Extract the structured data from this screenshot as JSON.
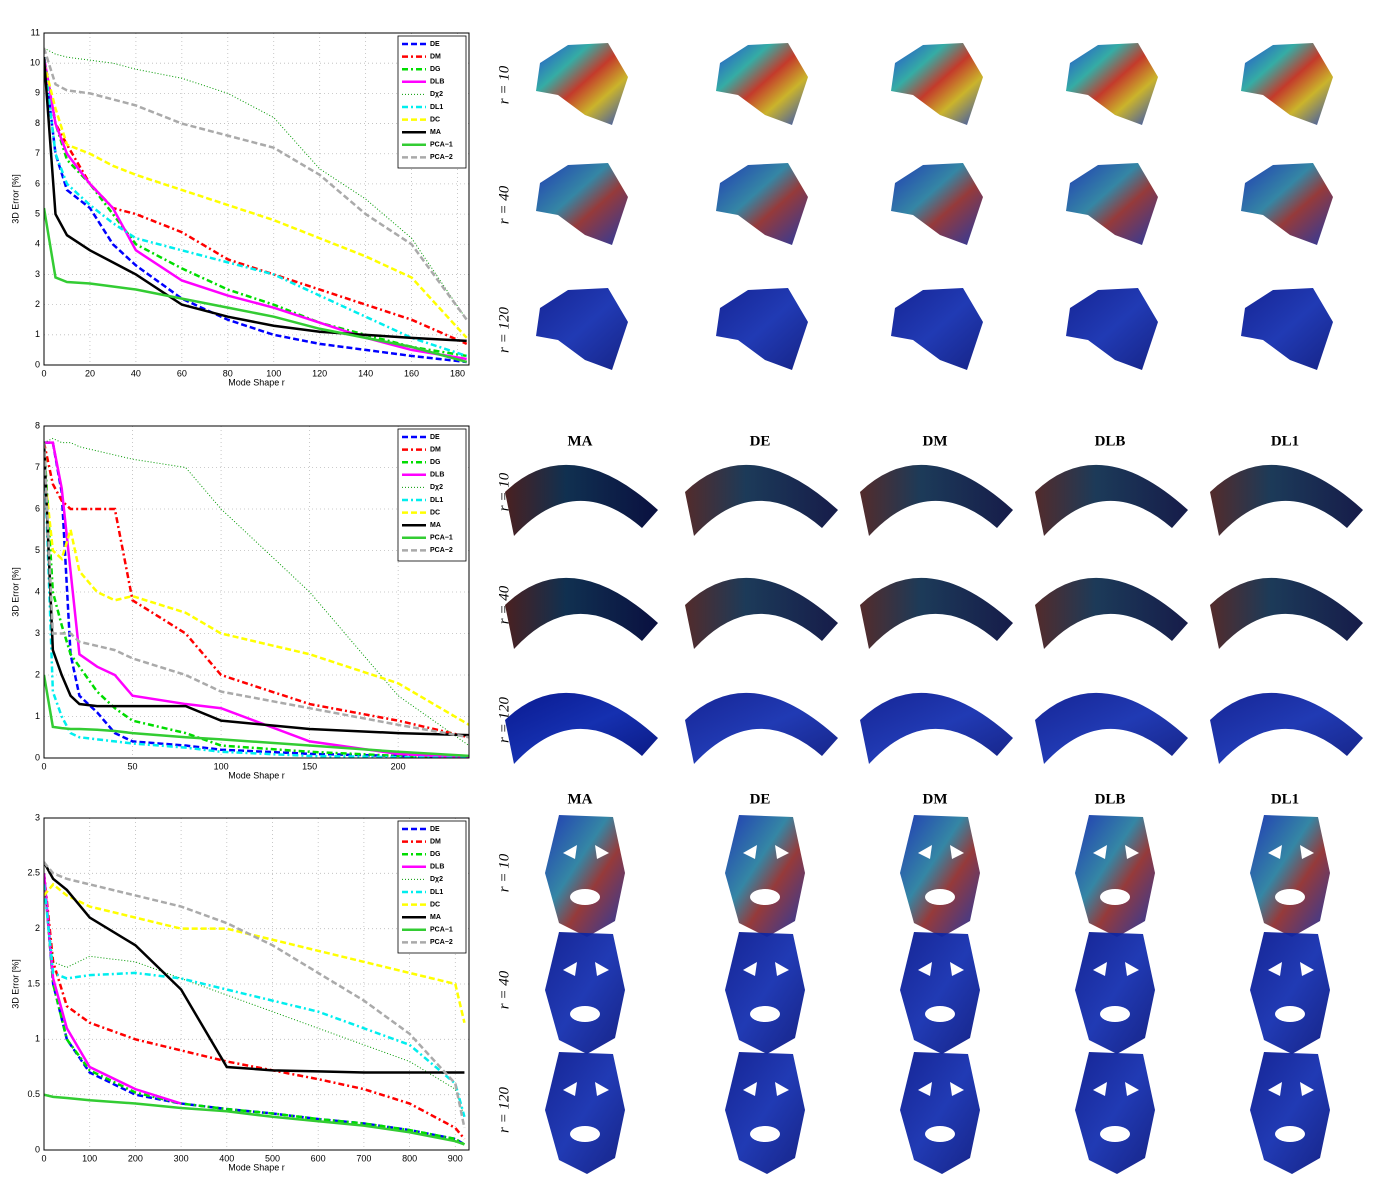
{
  "chart_data": [
    {
      "type": "line",
      "xlabel": "Mode Shape r",
      "ylabel": "3D Error [%]",
      "xlim": [
        0,
        185
      ],
      "ylim": [
        0,
        11
      ],
      "xticks": [
        0,
        20,
        40,
        60,
        80,
        100,
        120,
        140,
        160,
        180
      ],
      "yticks": [
        0,
        1,
        2,
        3,
        4,
        5,
        6,
        7,
        8,
        9,
        10,
        11
      ],
      "grid": true,
      "legend": "top-right",
      "x": [
        0,
        5,
        10,
        20,
        30,
        40,
        60,
        80,
        100,
        120,
        140,
        160,
        184
      ],
      "series": [
        {
          "name": "DE",
          "color": "#0000ff",
          "style": "dashed",
          "values": [
            10.2,
            7,
            5.8,
            5.2,
            4,
            3.3,
            2.2,
            1.5,
            1.0,
            0.7,
            0.5,
            0.3,
            0.1
          ]
        },
        {
          "name": "DM",
          "color": "#ff0000",
          "style": "dashdot",
          "values": [
            10.2,
            8,
            7.3,
            6,
            5.2,
            5,
            4.4,
            3.5,
            3.0,
            2.5,
            2.0,
            1.5,
            0.7
          ]
        },
        {
          "name": "DG",
          "color": "#00dd00",
          "style": "dashdot",
          "values": [
            10.2,
            8,
            6.8,
            6,
            5,
            4,
            3.2,
            2.5,
            2.0,
            1.4,
            1.0,
            0.6,
            0.3
          ]
        },
        {
          "name": "DLB",
          "color": "#ff00ff",
          "style": "solid",
          "values": [
            10.2,
            8,
            7,
            6,
            5.2,
            3.8,
            2.8,
            2.3,
            1.9,
            1.4,
            0.9,
            0.5,
            0.2
          ]
        },
        {
          "name": "Dχ2",
          "color": "#009900",
          "style": "dotted",
          "values": [
            10.5,
            10.3,
            10.2,
            10.1,
            10,
            9.8,
            9.5,
            9,
            8.2,
            6.5,
            5.5,
            4.2,
            1.5
          ]
        },
        {
          "name": "DL1",
          "color": "#00eeee",
          "style": "dashdot",
          "values": [
            10.2,
            7,
            6,
            5.3,
            4.7,
            4.2,
            3.8,
            3.4,
            3.0,
            2.3,
            1.6,
            0.9,
            0.3
          ]
        },
        {
          "name": "DC",
          "color": "#ffff00",
          "style": "dashed",
          "values": [
            10,
            8.5,
            7.3,
            7.0,
            6.6,
            6.3,
            5.8,
            5.3,
            4.8,
            4.2,
            3.6,
            2.9,
            0.9
          ]
        },
        {
          "name": "MA",
          "color": "#000000",
          "style": "solid",
          "values": [
            10.2,
            5,
            4.3,
            3.8,
            3.4,
            3.0,
            2.0,
            1.6,
            1.3,
            1.1,
            1.0,
            0.9,
            0.8
          ]
        },
        {
          "name": "PCA−1",
          "color": "#33cc33",
          "style": "solid",
          "values": [
            5.2,
            2.9,
            2.75,
            2.7,
            2.6,
            2.5,
            2.2,
            1.9,
            1.6,
            1.2,
            0.9,
            0.6,
            0.1
          ]
        },
        {
          "name": "PCA−2",
          "color": "#aaaaaa",
          "style": "dashed",
          "values": [
            10.5,
            9.3,
            9.1,
            9.0,
            8.8,
            8.6,
            8.0,
            7.6,
            7.2,
            6.3,
            5.0,
            4.0,
            1.5
          ]
        }
      ]
    },
    {
      "type": "line",
      "xlabel": "Mode Shape r",
      "ylabel": "3D Error [%]",
      "xlim": [
        0,
        240
      ],
      "ylim": [
        0,
        8
      ],
      "xticks": [
        0,
        50,
        100,
        150,
        200
      ],
      "yticks": [
        0,
        1,
        2,
        3,
        4,
        5,
        6,
        7,
        8
      ],
      "grid": true,
      "legend": "top-right",
      "x": [
        0,
        5,
        10,
        15,
        20,
        30,
        40,
        50,
        80,
        100,
        150,
        200,
        240
      ],
      "series": [
        {
          "name": "DE",
          "color": "#0000ff",
          "style": "dashed",
          "values": [
            7.6,
            7.6,
            6.4,
            2.5,
            1.5,
            1.1,
            0.6,
            0.4,
            0.3,
            0.2,
            0.1,
            0.05,
            0
          ]
        },
        {
          "name": "DM",
          "color": "#ff0000",
          "style": "dashdot",
          "values": [
            7.6,
            6.6,
            6.2,
            6.0,
            6.0,
            6.0,
            6.0,
            3.8,
            3.0,
            2.0,
            1.3,
            0.9,
            0.5
          ]
        },
        {
          "name": "DG",
          "color": "#00dd00",
          "style": "dashdot",
          "values": [
            7.6,
            4,
            3.2,
            2.5,
            2.2,
            1.6,
            1.2,
            0.9,
            0.6,
            0.3,
            0.15,
            0.05,
            0
          ]
        },
        {
          "name": "DLB",
          "color": "#ff00ff",
          "style": "solid",
          "values": [
            7.6,
            7.6,
            6.5,
            4.5,
            2.5,
            2.2,
            2.0,
            1.5,
            1.3,
            1.2,
            0.4,
            0.1,
            0
          ]
        },
        {
          "name": "Dχ2",
          "color": "#009900",
          "style": "dotted",
          "values": [
            7.6,
            7.7,
            7.6,
            7.6,
            7.5,
            7.4,
            7.3,
            7.2,
            7.0,
            6.0,
            4.0,
            1.5,
            0.3
          ]
        },
        {
          "name": "DL1",
          "color": "#00eeee",
          "style": "dashdot",
          "values": [
            7.6,
            1.6,
            1.0,
            0.6,
            0.5,
            0.45,
            0.4,
            0.35,
            0.25,
            0.15,
            0.05,
            0.02,
            0
          ]
        },
        {
          "name": "DC",
          "color": "#ffff00",
          "style": "dashed",
          "values": [
            7,
            5,
            4.8,
            5.5,
            4.5,
            4.0,
            3.8,
            3.9,
            3.5,
            3.0,
            2.5,
            1.8,
            0.8
          ]
        },
        {
          "name": "MA",
          "color": "#000000",
          "style": "solid",
          "values": [
            7.6,
            2.6,
            2.0,
            1.5,
            1.3,
            1.25,
            1.25,
            1.25,
            1.25,
            0.9,
            0.7,
            0.6,
            0.55
          ]
        },
        {
          "name": "PCA−1",
          "color": "#33cc33",
          "style": "solid",
          "values": [
            2.0,
            0.75,
            0.72,
            0.7,
            0.7,
            0.68,
            0.65,
            0.6,
            0.5,
            0.45,
            0.3,
            0.15,
            0.05
          ]
        },
        {
          "name": "PCA−2",
          "color": "#aaaaaa",
          "style": "dashed",
          "values": [
            7.6,
            3,
            3.0,
            3.0,
            2.8,
            2.7,
            2.6,
            2.4,
            2.0,
            1.6,
            1.2,
            0.8,
            0.5
          ]
        }
      ]
    },
    {
      "type": "line",
      "xlabel": "Mode Shape r",
      "ylabel": "3D Error [%]",
      "xlim": [
        0,
        930
      ],
      "ylim": [
        0,
        3
      ],
      "xticks": [
        0,
        100,
        200,
        300,
        400,
        500,
        600,
        700,
        800,
        900
      ],
      "yticks": [
        0,
        0.5,
        1,
        1.5,
        2,
        2.5,
        3
      ],
      "grid": true,
      "legend": "top-right",
      "x": [
        0,
        20,
        50,
        100,
        200,
        300,
        400,
        500,
        600,
        700,
        800,
        900,
        920
      ],
      "series": [
        {
          "name": "DE",
          "color": "#0000ff",
          "style": "dashed",
          "values": [
            2.5,
            1.5,
            1.0,
            0.7,
            0.5,
            0.42,
            0.37,
            0.33,
            0.28,
            0.24,
            0.18,
            0.1,
            0.05
          ]
        },
        {
          "name": "DM",
          "color": "#ff0000",
          "style": "dashdot",
          "values": [
            2.5,
            1.7,
            1.3,
            1.15,
            1.0,
            0.9,
            0.8,
            0.72,
            0.64,
            0.55,
            0.42,
            0.2,
            0.1
          ]
        },
        {
          "name": "DG",
          "color": "#00dd00",
          "style": "dashdot",
          "values": [
            2.5,
            1.5,
            1.0,
            0.72,
            0.52,
            0.42,
            0.37,
            0.33,
            0.28,
            0.24,
            0.18,
            0.1,
            0.05
          ]
        },
        {
          "name": "DLB",
          "color": "#ff00ff",
          "style": "solid",
          "values": [
            2.5,
            1.55,
            1.1,
            0.75,
            0.55,
            0.42,
            null,
            null,
            null,
            null,
            null,
            null,
            null
          ]
        },
        {
          "name": "Dχ2",
          "color": "#009900",
          "style": "dotted",
          "values": [
            2.4,
            1.7,
            1.65,
            1.75,
            1.7,
            1.55,
            1.4,
            1.25,
            1.1,
            0.95,
            0.8,
            0.55,
            0.3
          ]
        },
        {
          "name": "DL1",
          "color": "#00eeee",
          "style": "dashdot",
          "values": [
            2.4,
            1.6,
            1.55,
            1.58,
            1.6,
            1.55,
            1.45,
            1.35,
            1.25,
            1.1,
            0.95,
            0.6,
            0.3
          ]
        },
        {
          "name": "DC",
          "color": "#ffff00",
          "style": "dashed",
          "values": [
            2.3,
            2.4,
            2.3,
            2.2,
            2.1,
            2.0,
            2.0,
            1.9,
            1.8,
            1.7,
            1.6,
            1.5,
            1.15
          ]
        },
        {
          "name": "MA",
          "color": "#000000",
          "style": "solid",
          "values": [
            2.6,
            2.45,
            2.35,
            2.1,
            1.85,
            1.45,
            0.75,
            0.72,
            0.71,
            0.7,
            0.7,
            0.7,
            0.7
          ]
        },
        {
          "name": "PCA−1",
          "color": "#33cc33",
          "style": "solid",
          "values": [
            0.5,
            0.48,
            0.47,
            0.45,
            0.42,
            0.38,
            0.35,
            0.3,
            0.26,
            0.22,
            0.16,
            0.08,
            0.05
          ]
        },
        {
          "name": "PCA−2",
          "color": "#aaaaaa",
          "style": "dashed",
          "values": [
            2.6,
            2.5,
            2.45,
            2.4,
            2.3,
            2.2,
            2.05,
            1.85,
            1.6,
            1.35,
            1.05,
            0.6,
            0.2
          ]
        }
      ]
    }
  ],
  "renderings": [
    {
      "rows": [
        "r = 10",
        "r = 40",
        "r = 120"
      ]
    },
    {
      "columns": [
        "MA",
        "DE",
        "DM",
        "DLB",
        "DL1"
      ],
      "rows": [
        "r = 10",
        "r = 40",
        "r = 120"
      ]
    },
    {
      "columns": [
        "MA",
        "DE",
        "DM",
        "DLB",
        "DL1"
      ],
      "rows": [
        "r = 10",
        "r = 40",
        "r = 120"
      ]
    }
  ]
}
